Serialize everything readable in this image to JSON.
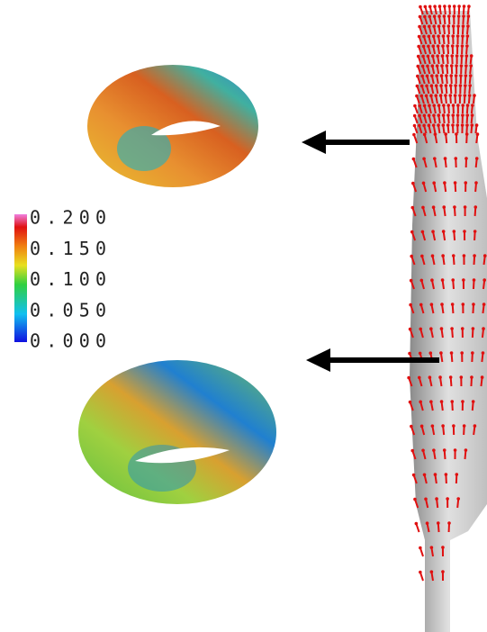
{
  "colorbar": {
    "ticks": [
      {
        "value": 0.2,
        "label": "0.200"
      },
      {
        "value": 0.15,
        "label": "0.150"
      },
      {
        "value": 0.1,
        "label": "0.100"
      },
      {
        "value": 0.05,
        "label": "0.050"
      },
      {
        "value": 0,
        "label": "0.000"
      }
    ]
  }
}
